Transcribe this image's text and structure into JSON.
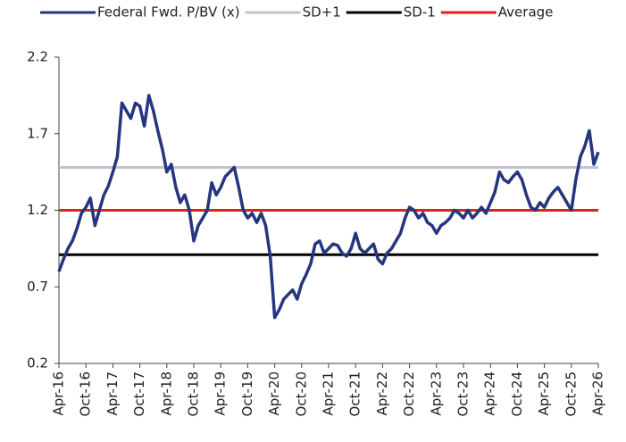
{
  "chart_data": {
    "type": "line",
    "categories": [
      "Apr-16",
      null,
      null,
      null,
      null,
      null,
      "Oct-16",
      null,
      null,
      null,
      null,
      null,
      "Apr-17",
      null,
      null,
      null,
      null,
      null,
      "Oct-17",
      null,
      null,
      null,
      null,
      null,
      "Apr-18",
      null,
      null,
      null,
      null,
      null,
      "Oct-18",
      null,
      null,
      null,
      null,
      null,
      "Apr-19",
      null,
      null,
      null,
      null,
      null,
      "Oct-19",
      null,
      null,
      null,
      null,
      null,
      "Apr-20",
      null,
      null,
      null,
      null,
      null,
      "Oct-20",
      null,
      null,
      null,
      null,
      null,
      "Apr-21",
      null,
      null,
      null,
      null,
      null,
      "Oct-21",
      null,
      null,
      null,
      null,
      null,
      "Apr-22",
      null,
      null,
      null,
      null,
      null,
      "Oct-22",
      null,
      null,
      null,
      null,
      null,
      "Apr-23",
      null,
      null,
      null,
      null,
      null,
      "Oct-23",
      null,
      null,
      null,
      null,
      null,
      "Apr-24",
      null,
      null,
      null,
      null,
      null,
      "Oct-24",
      null,
      null,
      null,
      null,
      null,
      "Apr-25",
      null,
      null,
      null,
      null,
      null,
      "Oct-25",
      null,
      null,
      null,
      null,
      null,
      "Apr-26"
    ],
    "series": [
      {
        "name": "Federal Fwd. P/BV (x)",
        "color": "#26357f",
        "values": [
          0.8,
          0.88,
          0.95,
          1.0,
          1.08,
          1.18,
          1.22,
          1.28,
          1.1,
          1.2,
          1.3,
          1.36,
          1.45,
          1.55,
          1.9,
          1.85,
          1.8,
          1.9,
          1.88,
          1.75,
          1.95,
          1.85,
          1.72,
          1.6,
          1.45,
          1.5,
          1.35,
          1.25,
          1.3,
          1.2,
          1.0,
          1.1,
          1.15,
          1.2,
          1.38,
          1.3,
          1.35,
          1.42,
          1.45,
          1.48,
          1.35,
          1.2,
          1.15,
          1.18,
          1.12,
          1.18,
          1.1,
          0.9,
          0.5,
          0.55,
          0.62,
          0.65,
          0.68,
          0.62,
          0.72,
          0.78,
          0.85,
          0.98,
          1.0,
          0.92,
          0.95,
          0.98,
          0.97,
          0.92,
          0.9,
          0.95,
          1.05,
          0.95,
          0.92,
          0.95,
          0.98,
          0.88,
          0.85,
          0.92,
          0.95,
          1.0,
          1.05,
          1.15,
          1.22,
          1.2,
          1.15,
          1.18,
          1.12,
          1.1,
          1.05,
          1.1,
          1.12,
          1.15,
          1.2,
          1.18,
          1.15,
          1.2,
          1.15,
          1.18,
          1.22,
          1.18,
          1.25,
          1.32,
          1.45,
          1.4,
          1.38,
          1.42,
          1.45,
          1.4,
          1.3,
          1.22,
          1.2,
          1.25,
          1.22,
          1.28,
          1.32,
          1.35,
          1.3,
          1.25,
          1.2,
          1.4,
          1.55,
          1.62,
          1.72,
          1.5,
          1.58
        ]
      }
    ],
    "hlines": [
      {
        "name": "SD+1",
        "color": "#c3c3cf",
        "value": 1.48
      },
      {
        "name": "SD-1",
        "color": "#000000",
        "value": 0.91
      },
      {
        "name": "Average",
        "color": "#e0201e",
        "value": 1.2
      }
    ],
    "ylim": [
      0.2,
      2.2
    ],
    "yticks": [
      0.2,
      0.7,
      1.2,
      1.7,
      2.2
    ]
  }
}
